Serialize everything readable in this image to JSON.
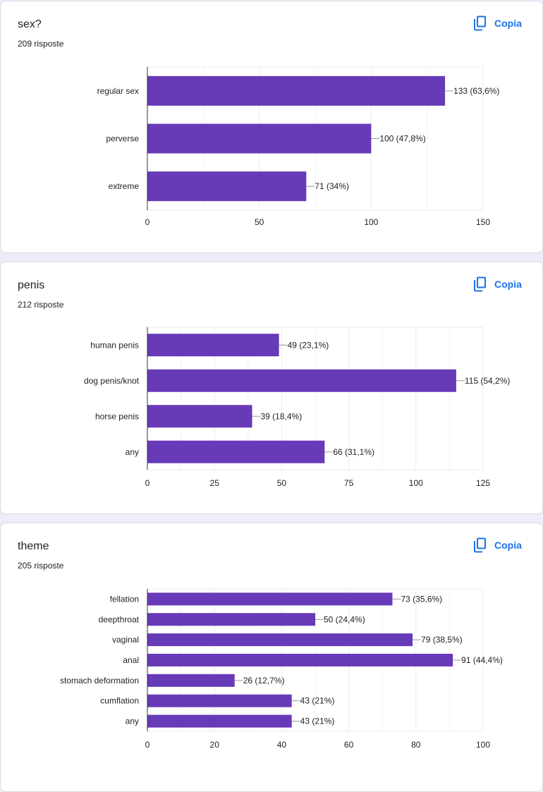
{
  "copy_label": "Copia",
  "colors": {
    "bar": "#673ab7",
    "accent": "#1a73e8",
    "background": "#f0ebf8"
  },
  "cards": [
    {
      "title": "sex?",
      "responses": "209 risposte"
    },
    {
      "title": "penis",
      "responses": "212 risposte"
    },
    {
      "title": "theme",
      "responses": "205 risposte"
    }
  ],
  "chart_data": [
    {
      "type": "bar",
      "orientation": "horizontal",
      "categories": [
        "regular sex",
        "perverse",
        "extreme"
      ],
      "values": [
        133,
        100,
        71
      ],
      "labels": [
        "133 (63,6%)",
        "100 (47,8%)",
        "71 (34%)"
      ],
      "xlim": [
        0,
        150
      ],
      "ticks": [
        0,
        50,
        100,
        150
      ],
      "grid": true
    },
    {
      "type": "bar",
      "orientation": "horizontal",
      "categories": [
        "human penis",
        "dog penis/knot",
        "horse penis",
        "any"
      ],
      "values": [
        49,
        115,
        39,
        66
      ],
      "labels": [
        "49 (23,1%)",
        "115 (54,2%)",
        "39 (18,4%)",
        "66 (31,1%)"
      ],
      "xlim": [
        0,
        125
      ],
      "ticks": [
        0,
        25,
        50,
        75,
        100,
        125
      ],
      "grid": true
    },
    {
      "type": "bar",
      "orientation": "horizontal",
      "categories": [
        "fellation",
        "deepthroat",
        "vaginal",
        "anal",
        "stomach deformation",
        "cumflation",
        "any"
      ],
      "values": [
        73,
        50,
        79,
        91,
        26,
        43,
        43
      ],
      "labels": [
        "73 (35,6%)",
        "50 (24,4%)",
        "79 (38,5%)",
        "91 (44,4%)",
        "26 (12,7%)",
        "43 (21%)",
        "43 (21%)"
      ],
      "xlim": [
        0,
        100
      ],
      "ticks": [
        0,
        20,
        40,
        60,
        80,
        100
      ],
      "grid": true
    }
  ]
}
